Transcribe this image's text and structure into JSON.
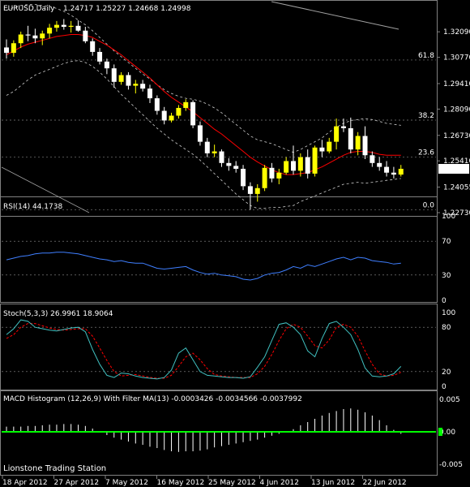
{
  "header": {
    "symbol_tf": "EURUSD,Daily",
    "ohlc": "1.24717 1.25227 1.24668 1.24998"
  },
  "watermark": "Lionstone Trading Station",
  "colors": {
    "background": "#000000",
    "bull": "#ffff00",
    "bear": "#ffffff",
    "ma": "#ff0000",
    "bands": "#cfcfcf",
    "rsi": "#3f7fff",
    "stoch_main": "#40c0c0",
    "stoch_signal": "#ff0000",
    "macd_hist": "#ffffff",
    "macd_ma": "#00ff00",
    "grid": "#808080",
    "price_box_bg": "#ffffff",
    "price_box_fg": "#000000"
  },
  "chart_data": [
    {
      "type": "candlestick",
      "x": [
        "18 Apr 2012",
        "27 Apr 2012",
        "7 May 2012",
        "16 May 2012",
        "25 May 2012",
        "4 Jun 2012",
        "13 Jun 2012",
        "22 Jun 2012"
      ],
      "price_ticks": [
        "1.32090",
        "1.30770",
        "1.29410",
        "1.28090",
        "1.26730",
        "1.25410",
        "1.24055",
        "1.22730"
      ],
      "current_price": "1.24998",
      "ylim": [
        1.2273,
        1.3298
      ],
      "fib_levels": [
        {
          "label": "61.8",
          "value": 1.3063
        },
        {
          "label": "38.2",
          "value": 1.2752
        },
        {
          "label": "23.6",
          "value": 1.2561
        },
        {
          "label": "0.0",
          "value": 1.2288
        }
      ],
      "candles": [
        [
          1.3128,
          1.317,
          1.307,
          1.31
        ],
        [
          1.31,
          1.3165,
          1.308,
          1.315
        ],
        [
          1.315,
          1.321,
          1.3125,
          1.3195
        ],
        [
          1.3195,
          1.324,
          1.316,
          1.319
        ],
        [
          1.319,
          1.3225,
          1.315,
          1.3175
        ],
        [
          1.3175,
          1.3215,
          1.314,
          1.32
        ],
        [
          1.32,
          1.325,
          1.3175,
          1.323
        ],
        [
          1.323,
          1.3265,
          1.321,
          1.3245
        ],
        [
          1.3245,
          1.3275,
          1.322,
          1.3235
        ],
        [
          1.3235,
          1.3265,
          1.3205,
          1.324
        ],
        [
          1.324,
          1.3268,
          1.321,
          1.3215
        ],
        [
          1.3215,
          1.3235,
          1.315,
          1.316
        ],
        [
          1.316,
          1.3175,
          1.3085,
          1.3105
        ],
        [
          1.3105,
          1.3125,
          1.304,
          1.3055
        ],
        [
          1.3055,
          1.307,
          1.299,
          1.302
        ],
        [
          1.302,
          1.304,
          1.292,
          1.295
        ],
        [
          1.295,
          1.3,
          1.2935,
          1.2985
        ],
        [
          1.2985,
          1.3,
          1.291,
          1.293
        ],
        [
          1.293,
          1.296,
          1.289,
          1.294
        ],
        [
          1.294,
          1.296,
          1.29,
          1.2915
        ],
        [
          1.2915,
          1.2935,
          1.284,
          1.2865
        ],
        [
          1.2865,
          1.288,
          1.278,
          1.28
        ],
        [
          1.28,
          1.282,
          1.273,
          1.275
        ],
        [
          1.275,
          1.279,
          1.274,
          1.2775
        ],
        [
          1.2775,
          1.283,
          1.276,
          1.2815
        ],
        [
          1.2815,
          1.286,
          1.28,
          1.2845
        ],
        [
          1.2845,
          1.2855,
          1.271,
          1.2725
        ],
        [
          1.2725,
          1.2745,
          1.262,
          1.264
        ],
        [
          1.264,
          1.266,
          1.256,
          1.258
        ],
        [
          1.258,
          1.2625,
          1.256,
          1.259
        ],
        [
          1.259,
          1.26,
          1.251,
          1.253
        ],
        [
          1.253,
          1.2555,
          1.249,
          1.2515
        ],
        [
          1.2515,
          1.254,
          1.248,
          1.25
        ],
        [
          1.25,
          1.252,
          1.239,
          1.241
        ],
        [
          1.241,
          1.243,
          1.2288,
          1.237
        ],
        [
          1.237,
          1.242,
          1.233,
          1.24
        ],
        [
          1.24,
          1.252,
          1.2385,
          1.2505
        ],
        [
          1.2505,
          1.253,
          1.243,
          1.245
        ],
        [
          1.245,
          1.25,
          1.242,
          1.248
        ],
        [
          1.248,
          1.256,
          1.247,
          1.254
        ],
        [
          1.254,
          1.262,
          1.247,
          1.249
        ],
        [
          1.249,
          1.258,
          1.246,
          1.256
        ],
        [
          1.256,
          1.26,
          1.245,
          1.2475
        ],
        [
          1.2475,
          1.262,
          1.246,
          1.261
        ],
        [
          1.261,
          1.265,
          1.256,
          1.259
        ],
        [
          1.259,
          1.266,
          1.258,
          1.264
        ],
        [
          1.264,
          1.276,
          1.26,
          1.272
        ],
        [
          1.272,
          1.276,
          1.269,
          1.271
        ],
        [
          1.271,
          1.2765,
          1.258,
          1.26
        ],
        [
          1.26,
          1.269,
          1.257,
          1.267
        ],
        [
          1.267,
          1.272,
          1.255,
          1.257
        ],
        [
          1.257,
          1.259,
          1.251,
          1.253
        ],
        [
          1.253,
          1.256,
          1.249,
          1.251
        ],
        [
          1.251,
          1.254,
          1.246,
          1.248
        ],
        [
          1.248,
          1.251,
          1.245,
          1.247
        ],
        [
          1.247,
          1.252,
          1.246,
          1.25
        ]
      ],
      "ma": [
        1.309,
        1.311,
        1.313,
        1.3145,
        1.3155,
        1.3165,
        1.3175,
        1.3185,
        1.319,
        1.3195,
        1.3195,
        1.319,
        1.318,
        1.316,
        1.314,
        1.3115,
        1.309,
        1.306,
        1.303,
        1.3,
        1.297,
        1.2935,
        1.29,
        1.287,
        1.2845,
        1.282,
        1.2795,
        1.2765,
        1.2735,
        1.2705,
        1.268,
        1.265,
        1.262,
        1.259,
        1.256,
        1.2535,
        1.2515,
        1.2495,
        1.248,
        1.247,
        1.247,
        1.2475,
        1.248,
        1.2495,
        1.251,
        1.253,
        1.255,
        1.257,
        1.2585,
        1.259,
        1.259,
        1.2585,
        1.2575,
        1.257,
        1.257,
        1.257
      ],
      "upper_band": [
        1.332,
        1.3335,
        1.3345,
        1.335,
        1.335,
        1.3345,
        1.334,
        1.333,
        1.3315,
        1.3295,
        1.327,
        1.3245,
        1.3215,
        1.318,
        1.3145,
        1.311,
        1.308,
        1.305,
        1.302,
        1.299,
        1.2965,
        1.2935,
        1.291,
        1.289,
        1.2875,
        1.2865,
        1.286,
        1.285,
        1.2835,
        1.2815,
        1.279,
        1.276,
        1.273,
        1.27,
        1.267,
        1.265,
        1.264,
        1.263,
        1.2615,
        1.26,
        1.2585,
        1.26,
        1.262,
        1.264,
        1.266,
        1.269,
        1.2715,
        1.2735,
        1.275,
        1.2755,
        1.276,
        1.2755,
        1.2745,
        1.2735,
        1.273,
        1.2725
      ],
      "lower_band": [
        1.288,
        1.29,
        1.293,
        1.296,
        1.2985,
        1.3,
        1.3015,
        1.303,
        1.3045,
        1.3055,
        1.306,
        1.305,
        1.303,
        1.3,
        1.2965,
        1.2925,
        1.2885,
        1.285,
        1.2815,
        1.278,
        1.2745,
        1.271,
        1.268,
        1.265,
        1.2625,
        1.26,
        1.2575,
        1.2545,
        1.251,
        1.2475,
        1.244,
        1.2405,
        1.237,
        1.234,
        1.231,
        1.2295,
        1.2295,
        1.23,
        1.23,
        1.2305,
        1.231,
        1.233,
        1.2345,
        1.236,
        1.2375,
        1.239,
        1.2405,
        1.242,
        1.2425,
        1.243,
        1.2425,
        1.243,
        1.2435,
        1.244,
        1.2445,
        1.245
      ],
      "trendline_hint": "grey line at top right"
    },
    {
      "type": "line",
      "title": "RSI(14) 44.1738",
      "ylim": [
        0,
        100
      ],
      "levels": [
        70,
        30
      ],
      "tick_labels": [
        "100",
        "70",
        "30",
        "0"
      ],
      "values": [
        48,
        50,
        52,
        53,
        55,
        56,
        56,
        57,
        57,
        56,
        55,
        53,
        51,
        49,
        48,
        46,
        47,
        45,
        44,
        44,
        41,
        38,
        37,
        38,
        39,
        40,
        36,
        33,
        31,
        32,
        30,
        29,
        28,
        25,
        24,
        26,
        30,
        32,
        33,
        36,
        40,
        38,
        42,
        40,
        43,
        46,
        49,
        51,
        48,
        51,
        50,
        47,
        46,
        45,
        43,
        44
      ]
    },
    {
      "type": "line",
      "title": "Stoch(5,3,3) 26.9961 18.9064",
      "ylim": [
        0,
        100
      ],
      "levels": [
        80,
        20
      ],
      "tick_labels": [
        "100",
        "80",
        "20",
        "0"
      ],
      "series": [
        {
          "values": [
            70,
            78,
            90,
            88,
            80,
            78,
            76,
            75,
            77,
            79,
            80,
            74,
            50,
            30,
            15,
            12,
            18,
            17,
            14,
            12,
            11,
            10,
            12,
            22,
            45,
            52,
            36,
            20,
            15,
            14,
            13,
            12,
            12,
            11,
            13,
            26,
            40,
            62,
            84,
            86,
            80,
            70,
            48,
            40,
            65,
            85,
            88,
            80,
            70,
            50,
            25,
            14,
            13,
            14,
            17,
            27
          ]
        },
        {
          "values": [
            65,
            70,
            80,
            85,
            85,
            82,
            79,
            77,
            76,
            77,
            78,
            78,
            68,
            52,
            35,
            20,
            14,
            15,
            16,
            14,
            12,
            11,
            11,
            15,
            27,
            40,
            45,
            36,
            24,
            16,
            14,
            13,
            12,
            12,
            12,
            17,
            27,
            43,
            62,
            78,
            84,
            80,
            68,
            55,
            52,
            63,
            80,
            84,
            80,
            68,
            48,
            30,
            17,
            14,
            15,
            19
          ]
        }
      ]
    },
    {
      "type": "bar",
      "title": "MACD Histogram (12,26,9) With Filter MA(13) -0.0003426 -0.0034566 -0.0037992",
      "ylim": [
        -0.0055,
        0.0055
      ],
      "tick_labels": [
        "0.005",
        "0.00",
        "-0.005"
      ],
      "values": [
        0.0008,
        0.0008,
        0.0008,
        0.0009,
        0.0009,
        0.001,
        0.0011,
        0.0011,
        0.0012,
        0.0012,
        0.0011,
        0.0009,
        0.0005,
        0.0,
        -0.0005,
        -0.0009,
        -0.0012,
        -0.0015,
        -0.0018,
        -0.002,
        -0.0023,
        -0.0025,
        -0.0028,
        -0.003,
        -0.0031,
        -0.003,
        -0.003,
        -0.0029,
        -0.0027,
        -0.0024,
        -0.0022,
        -0.002,
        -0.0018,
        -0.0016,
        -0.0014,
        -0.0012,
        -0.0009,
        -0.0006,
        -0.0003,
        0.0,
        0.0004,
        0.001,
        0.0015,
        0.002,
        0.0025,
        0.0029,
        0.0032,
        0.0035,
        0.0036,
        0.0034,
        0.003,
        0.0025,
        0.0018,
        0.001,
        0.0003,
        -0.0003
      ],
      "filter_ma": 0.0
    }
  ]
}
